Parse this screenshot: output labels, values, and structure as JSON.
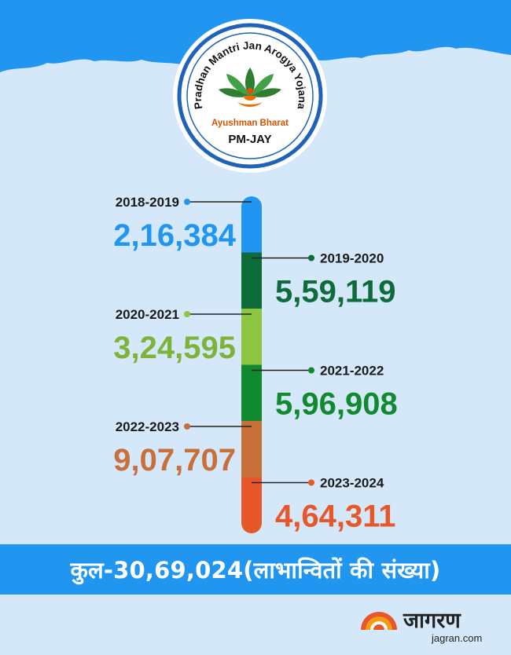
{
  "logo": {
    "arc_text": "Pradhan Mantri Jan Arogya Yojana",
    "subtitle": "Ayushman Bharat",
    "short": "PM-JAY"
  },
  "colors": {
    "sky": "#2196f0",
    "background": "#d4e8f9",
    "label_text": "#1a1a1a"
  },
  "chart_data": {
    "type": "bar",
    "categories": [
      "2018-2019",
      "2019-2020",
      "2020-2021",
      "2021-2022",
      "2022-2023",
      "2023-2024"
    ],
    "values": [
      216384,
      559119,
      324595,
      596908,
      907707,
      464311
    ],
    "value_labels": [
      "2,16,384",
      "5,59,119",
      "3,24,595",
      "5,96,908",
      "9,07,707",
      "4,64,311"
    ],
    "colors": [
      "#2196f0",
      "#0e6b3a",
      "#8cc63f",
      "#10892f",
      "#c8703a",
      "#e8572a"
    ],
    "value_colors": [
      "#2196f0",
      "#0e6b3a",
      "#7db338",
      "#10892f",
      "#c8703a",
      "#e8572a"
    ],
    "sides": [
      "left",
      "right",
      "left",
      "right",
      "left",
      "right"
    ]
  },
  "total": {
    "text": "कुल-30,69,024(लाभान्वितों की संख्या)"
  },
  "brand": {
    "name": "जागरण",
    "domain": "jagran.com"
  }
}
